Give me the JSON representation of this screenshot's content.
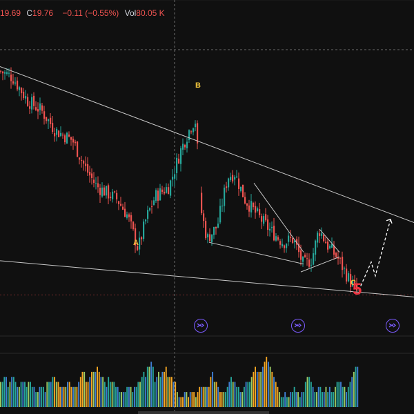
{
  "header": {
    "o_fragment": "19.69",
    "close_label": "C",
    "close_value": "19.76",
    "change": "−0.11 (−0.55%)",
    "vol_label": "Vol",
    "vol_value": "80.05 K"
  },
  "wave_labels": {
    "a": "A",
    "b": "B",
    "c": "C",
    "five": "5"
  },
  "colors": {
    "background": "#101010",
    "up": "#26a69a",
    "down": "#ef5350",
    "trendline": "#c8c8c8",
    "wave_label": "#f0c43c",
    "wave5": "#ef3340",
    "replay": "#7c5cff"
  },
  "icons": [
    "replay-icon",
    "replay-icon",
    "replay-icon"
  ],
  "chart_data": {
    "type": "candlestick",
    "title": "",
    "y_range": [
      18.0,
      22.8
    ],
    "grid": false,
    "price_path": [
      [
        0,
        21.95
      ],
      [
        18,
        21.86
      ],
      [
        40,
        21.5
      ],
      [
        60,
        21.35
      ],
      [
        80,
        21.05
      ],
      [
        105,
        20.9
      ],
      [
        125,
        20.45
      ],
      [
        140,
        20.2
      ],
      [
        155,
        20.1
      ],
      [
        170,
        20.0
      ],
      [
        185,
        19.75
      ],
      [
        200,
        19.25
      ],
      [
        212,
        19.72
      ],
      [
        225,
        20.05
      ],
      [
        245,
        20.2
      ],
      [
        262,
        20.75
      ],
      [
        278,
        21.15
      ],
      [
        284,
        21.2
      ],
      [
        290,
        19.9
      ],
      [
        300,
        19.4
      ],
      [
        315,
        19.6
      ],
      [
        330,
        20.35
      ],
      [
        340,
        20.4
      ],
      [
        355,
        20.0
      ],
      [
        370,
        19.8
      ],
      [
        390,
        19.55
      ],
      [
        410,
        19.35
      ],
      [
        425,
        19.4
      ],
      [
        440,
        19.0
      ],
      [
        452,
        19.1
      ],
      [
        462,
        19.55
      ],
      [
        475,
        19.3
      ],
      [
        490,
        19.1
      ],
      [
        505,
        18.8
      ],
      [
        517,
        18.6
      ]
    ],
    "projection": [
      [
        520,
        18.62
      ],
      [
        538,
        19.05
      ],
      [
        544,
        18.84
      ],
      [
        566,
        19.7
      ]
    ],
    "trendlines": [
      [
        [
          0,
          22.02
        ],
        [
          600,
          19.65
        ]
      ],
      [
        [
          0,
          19.07
        ],
        [
          600,
          18.52
        ]
      ],
      [
        [
          303,
          19.35
        ],
        [
          440,
          19.02
        ]
      ],
      [
        [
          368,
          20.25
        ],
        [
          440,
          19.2
        ]
      ],
      [
        [
          436,
          18.9
        ],
        [
          492,
          19.13
        ]
      ],
      [
        [
          463,
          19.55
        ],
        [
          492,
          19.2
        ]
      ]
    ],
    "reference_level": 18.55,
    "volume": {
      "values": [
        0.5,
        0.5,
        0.6,
        0.6,
        0.4,
        0.5,
        0.6,
        0.6,
        0.5,
        0.4,
        0.4,
        0.5,
        0.5,
        0.5,
        0.4,
        0.5,
        0.5,
        0.4,
        0.4,
        0.3,
        0.3,
        0.4,
        0.4,
        0.4,
        0.3,
        0.5,
        0.5,
        0.5,
        0.6,
        0.6,
        0.5,
        0.5,
        0.4,
        0.4,
        0.4,
        0.4,
        0.5,
        0.5,
        0.4,
        0.4,
        0.4,
        0.4,
        0.5,
        0.6,
        0.7,
        0.7,
        0.5,
        0.5,
        0.6,
        0.7,
        0.7,
        0.7,
        0.8,
        0.7,
        0.6,
        0.6,
        0.5,
        0.4,
        0.6,
        0.5,
        0.5,
        0.5,
        0.4,
        0.4,
        0.3,
        0.3,
        0.3,
        0.3,
        0.4,
        0.4,
        0.4,
        0.3,
        0.4,
        0.4,
        0.5,
        0.5,
        0.6,
        0.7,
        0.6,
        0.8,
        0.8,
        0.9,
        0.8,
        0.5,
        0.6,
        0.7,
        0.6,
        0.7,
        0.7,
        0.8,
        0.6,
        0.6,
        0.6,
        0.5,
        0.5,
        0.3,
        0.2,
        0.2,
        0.2,
        0.3,
        0.3,
        0.2,
        0.3,
        0.3,
        0.3,
        0.2,
        0.3,
        0.4,
        0.4,
        0.4,
        0.4,
        0.4,
        0.4,
        0.6,
        0.7,
        0.5,
        0.5,
        0.4,
        0.3,
        0.3,
        0.3,
        0.3,
        0.4,
        0.5,
        0.6,
        0.5,
        0.5,
        0.4,
        0.4,
        0.3,
        0.3,
        0.4,
        0.5,
        0.5,
        0.5,
        0.6,
        0.7,
        0.8,
        0.7,
        0.7,
        0.7,
        0.8,
        0.9,
        1.0,
        0.9,
        0.8,
        0.7,
        0.6,
        0.5,
        0.4,
        0.3,
        0.2,
        0.2,
        0.3,
        0.2,
        0.2,
        0.3,
        0.3,
        0.4,
        0.3,
        0.3,
        0.2,
        0.3,
        0.3,
        0.5,
        0.6,
        0.6,
        0.5,
        0.4,
        0.3,
        0.3,
        0.4,
        0.4,
        0.3,
        0.3,
        0.4,
        0.3,
        0.4,
        0.3,
        0.3,
        0.4,
        0.5,
        0.5,
        0.5,
        0.4,
        0.4,
        0.3,
        0.4,
        0.5,
        0.6,
        0.7,
        0.8,
        0.8
      ]
    }
  }
}
